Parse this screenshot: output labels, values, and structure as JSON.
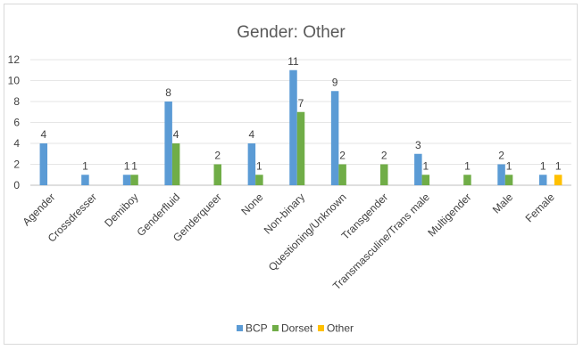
{
  "chart_data": {
    "type": "bar",
    "title": "Gender: Other",
    "xlabel": "",
    "ylabel": "",
    "ylim": [
      0,
      12
    ],
    "yticks": [
      0,
      2,
      4,
      6,
      8,
      10,
      12
    ],
    "grid": true,
    "legend_position": "bottom",
    "categories": [
      "Agender",
      "Crossdresser",
      "Demiboy",
      "Genderfluid",
      "Genderqueer",
      "None",
      "Non-binary",
      "Questioning/Unknown",
      "Transgender",
      "Transmasculine/Trans male",
      "Multigender",
      "Male",
      "Female"
    ],
    "series": [
      {
        "name": "BCP",
        "color": "#5b9bd5",
        "values": [
          4,
          1,
          1,
          8,
          null,
          4,
          11,
          9,
          null,
          3,
          null,
          2,
          1
        ]
      },
      {
        "name": "Dorset",
        "color": "#70ad47",
        "values": [
          null,
          null,
          1,
          4,
          2,
          1,
          7,
          2,
          2,
          1,
          1,
          1,
          null
        ]
      },
      {
        "name": "Other",
        "color": "#ffc000",
        "values": [
          null,
          null,
          null,
          null,
          null,
          null,
          null,
          null,
          null,
          null,
          null,
          null,
          1
        ]
      }
    ]
  }
}
